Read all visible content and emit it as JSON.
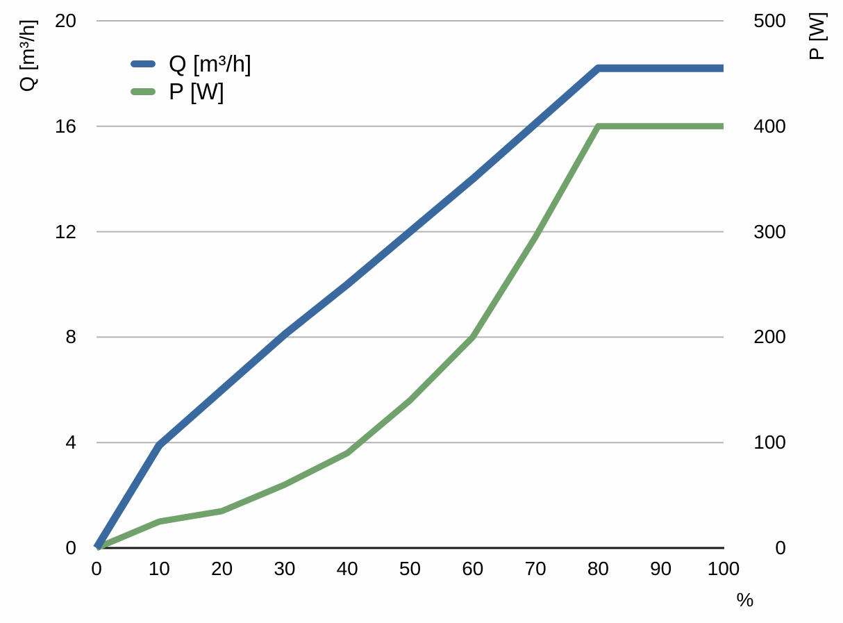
{
  "chart_data": {
    "type": "line",
    "x": [
      0,
      10,
      20,
      30,
      40,
      50,
      60,
      70,
      80,
      90,
      100
    ],
    "series": [
      {
        "name": "Q [m³/h]",
        "axis": "left",
        "color": "#3A69A0",
        "stroke_width": 11,
        "values": [
          0,
          3.9,
          6.0,
          8.1,
          10.0,
          12.0,
          14.0,
          16.1,
          18.2,
          18.2,
          18.2
        ]
      },
      {
        "name": "P [W]",
        "axis": "right",
        "color": "#72A26C",
        "stroke_width": 9,
        "values": [
          0,
          25,
          35,
          60,
          90,
          140,
          200,
          295,
          400,
          400,
          400
        ]
      }
    ],
    "left_axis": {
      "label": "Q [m³/h]",
      "ticks": [
        0,
        4,
        8,
        12,
        16,
        20
      ],
      "range": [
        0,
        20
      ]
    },
    "right_axis": {
      "label": "P [W]",
      "ticks": [
        0,
        100,
        200,
        300,
        400,
        500
      ],
      "range": [
        0,
        500
      ]
    },
    "x_axis": {
      "label": "%",
      "ticks": [
        0,
        10,
        20,
        30,
        40,
        50,
        60,
        70,
        80,
        90,
        100
      ],
      "range": [
        0,
        100
      ]
    },
    "grid": true,
    "legend_position": "top-left",
    "colors": {
      "gridline": "#b3b3b3",
      "axis_line": "#1a1a1a",
      "text": "#000000",
      "background": "#fdfefd"
    }
  }
}
